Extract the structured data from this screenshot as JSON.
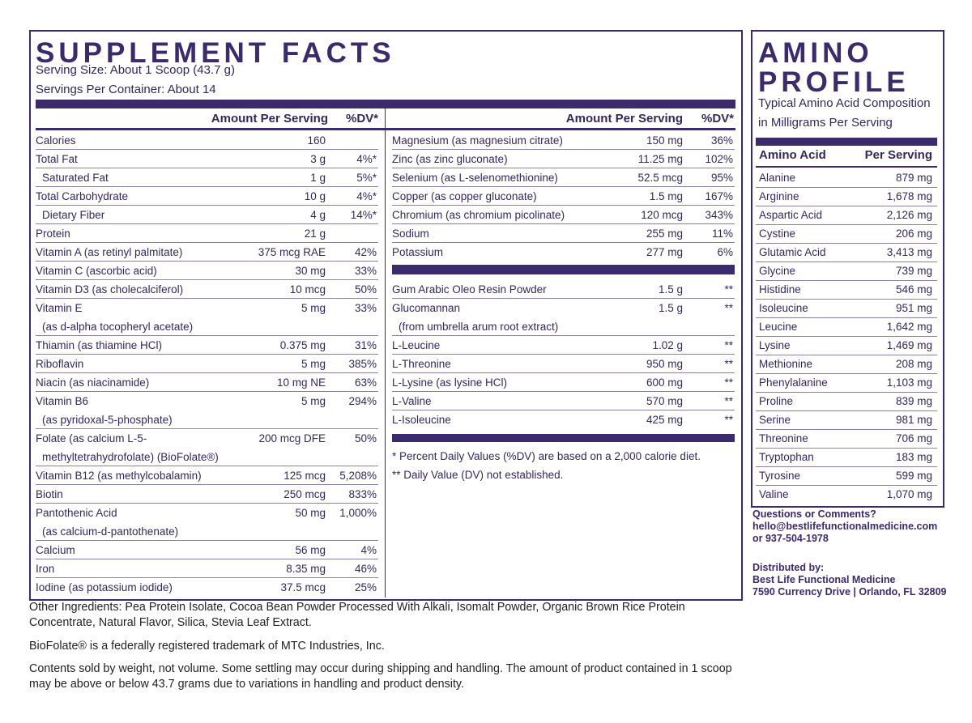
{
  "supplement_facts": {
    "title": "SUPPLEMENT FACTS",
    "serving_size": "Serving Size: About 1 Scoop (43.7 g)",
    "servings_per_container": "Servings Per Container: About 14",
    "left_column": {
      "header": [
        "Amount Per Serving",
        "%DV*"
      ],
      "rows": [
        {
          "name": "Calories",
          "amount": "160"
        },
        {
          "name": "Total Fat",
          "amount": "3 g",
          "dv": "4%*"
        },
        {
          "name": "Saturated Fat",
          "amount": "1 g",
          "dv": "5%*"
        },
        {
          "name": "Total Carbohydrate",
          "amount": "10 g",
          "dv": "4%*"
        },
        {
          "name": "Dietary Fiber",
          "amount": "4 g",
          "dv": "14%*"
        },
        {
          "name": "Protein",
          "amount": "21 g"
        },
        {
          "name": "Vitamin A (as retinyl palmitate)",
          "amount": "375 mcg RAE",
          "dv": "42%"
        },
        {
          "name": "Vitamin C (ascorbic acid)",
          "amount": "30 mg",
          "dv": "33%"
        },
        {
          "name": "Vitamin D3 (as cholecalciferol)",
          "amount": "10 mcg",
          "dv": "50%"
        },
        {
          "name": "Vitamin E",
          "sub": "(as d-alpha tocopheryl acetate)",
          "amount": "5 mg",
          "dv": "33%"
        },
        {
          "name": "Thiamin (as thiamine HCl)",
          "amount": "0.375 mg",
          "dv": "31%"
        },
        {
          "name": "Riboflavin",
          "amount": "5 mg",
          "dv": "385%"
        },
        {
          "name": "Niacin (as niacinamide)",
          "amount": "10 mg NE",
          "dv": "63%"
        },
        {
          "name": "Vitamin B6",
          "sub": "(as pyridoxal-5-phosphate)",
          "amount": "5 mg",
          "dv": "294%"
        },
        {
          "name": "Folate (as calcium L-5-",
          "sub": "methyltetrahydrofolate) (BioFolate®)",
          "amount": "200 mcg DFE",
          "dv": "50%"
        },
        {
          "name": "Vitamin B12 (as methylcobalamin)",
          "amount": "125 mcg",
          "dv": "5,208%"
        },
        {
          "name": "Biotin",
          "amount": "250 mcg",
          "dv": "833%"
        },
        {
          "name": "Pantothenic Acid",
          "sub": "(as calcium-d-pantothenate)",
          "amount": "50 mg",
          "dv": "1,000%"
        },
        {
          "name": "Calcium",
          "amount": "56 mg",
          "dv": "4%"
        },
        {
          "name": "Iron",
          "amount": "8.35 mg",
          "dv": "46%"
        },
        {
          "name": "Iodine (as potassium iodide)",
          "amount": "37.5 mcg",
          "dv": "25%"
        }
      ]
    },
    "right_column": {
      "header": [
        "Amount Per Serving",
        "%DV*"
      ],
      "groups": [
        [
          {
            "name": "Magnesium (as magnesium citrate)",
            "amount": "150 mg",
            "dv": "36%"
          },
          {
            "name": "Zinc (as zinc gluconate)",
            "amount": "11.25 mg",
            "dv": "102%"
          },
          {
            "name": "Selenium (as L-selenomethionine)",
            "amount": "52.5 mcg",
            "dv": "95%"
          },
          {
            "name": "Copper (as copper gluconate)",
            "amount": "1.5 mg",
            "dv": "167%"
          },
          {
            "name": "Chromium (as chromium picolinate)",
            "amount": "120 mcg",
            "dv": "343%"
          },
          {
            "name": "Sodium",
            "amount": "255 mg",
            "dv": "11%"
          },
          {
            "name": "Potassium",
            "amount": "277 mg",
            "dv": "6%"
          }
        ],
        [
          {
            "name": "Gum Arabic Oleo Resin Powder",
            "amount": "1.5 g",
            "dv": "**"
          },
          {
            "name": "Glucomannan",
            "sub": "(from umbrella arum root extract)",
            "amount": "1.5 g",
            "dv": "**"
          },
          {
            "name": "L-Leucine",
            "amount": "1.02 g",
            "dv": "**"
          },
          {
            "name": "L-Threonine",
            "amount": "950 mg",
            "dv": "**"
          },
          {
            "name": "L-Lysine (as lysine HCl)",
            "amount": "600 mg",
            "dv": "**"
          },
          {
            "name": "L-Valine",
            "amount": "570 mg",
            "dv": "**"
          },
          {
            "name": "L-Isoleucine",
            "amount": "425 mg",
            "dv": "**"
          }
        ]
      ],
      "footnotes": [
        "* Percent Daily Values (%DV) are based on a 2,000 calorie diet.",
        "** Daily Value (DV) not established."
      ]
    }
  },
  "amino_profile": {
    "title": [
      "AMINO",
      "PROFILE"
    ],
    "subtitle": [
      "Typical Amino Acid Composition",
      "in Milligrams Per Serving"
    ],
    "header": [
      "Amino Acid",
      "Per Serving"
    ],
    "rows": [
      [
        "Alanine",
        "879 mg"
      ],
      [
        "Arginine",
        "1,678 mg"
      ],
      [
        "Aspartic Acid",
        "2,126 mg"
      ],
      [
        "Cystine",
        "206 mg"
      ],
      [
        "Glutamic Acid",
        "3,413 mg"
      ],
      [
        "Glycine",
        "739 mg"
      ],
      [
        "Histidine",
        "546 mg"
      ],
      [
        "Isoleucine",
        "951 mg"
      ],
      [
        "Leucine",
        "1,642 mg"
      ],
      [
        "Lysine",
        "1,469 mg"
      ],
      [
        "Methionine",
        "208 mg"
      ],
      [
        "Phenylalanine",
        "1,103 mg"
      ],
      [
        "Proline",
        "839 mg"
      ],
      [
        "Serine",
        "981 mg"
      ],
      [
        "Threonine",
        "706 mg"
      ],
      [
        "Tryptophan",
        "183 mg"
      ],
      [
        "Tyrosine",
        "599 mg"
      ],
      [
        "Valine",
        "1,070 mg"
      ]
    ]
  },
  "contact": {
    "question": "Questions or Comments?",
    "email": "hello@bestlifefunctionalmedicine.com",
    "phone": "or 937-504-1978"
  },
  "distributor": {
    "label": "Distributed by:",
    "name": "Best Life Functional Medicine",
    "address": "7590 Currency Drive | Orlando, FL 32809"
  },
  "notes": {
    "other_ingredients": "Other Ingredients: Pea Protein Isolate, Cocoa Bean Powder Processed With Alkali, Isomalt Powder, Organic Brown Rice Protein Concentrate, Natural Flavor, Silica, Stevia Leaf Extract.",
    "trademark": "BioFolate® is a federally registered trademark of MTC Industries, Inc.",
    "contents": "Contents sold by weight, not volume. Some settling may occur during shipping and handling. The amount of product contained in 1 scoop may be above or below 43.7 grams due to variations in handling and product density."
  }
}
